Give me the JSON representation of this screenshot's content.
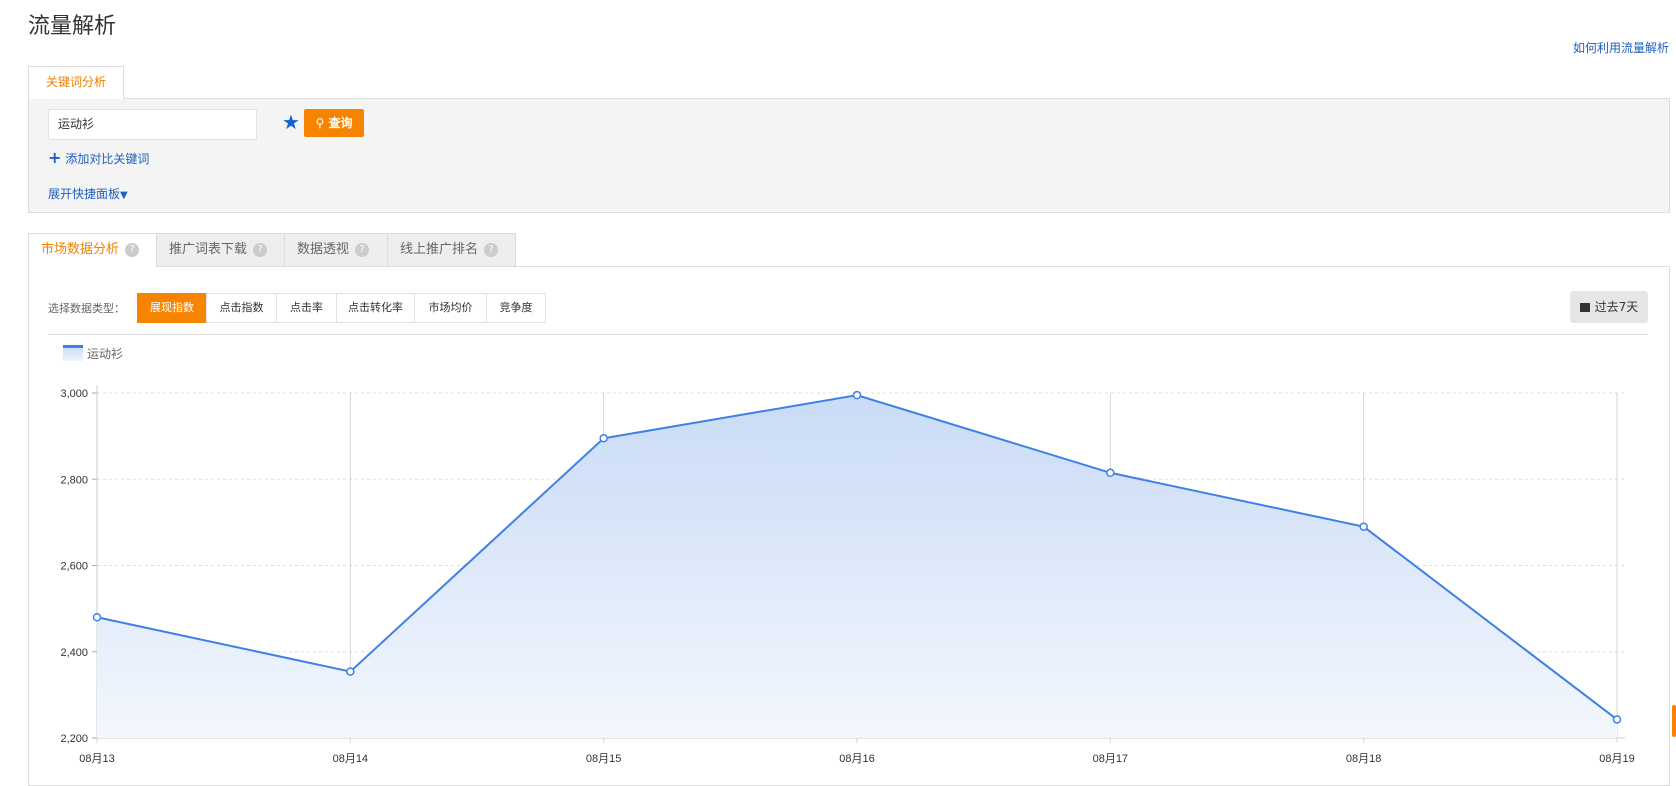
{
  "page": {
    "title": "流量解析",
    "help_link": "如何利用流量解析"
  },
  "keyword_panel": {
    "tab_label": "关键词分析",
    "input_value": "运动衫",
    "favorite_icon": "star-icon",
    "query_label": "查询",
    "add_compare_label": "添加对比关键词",
    "expand_label": "展开快捷面板"
  },
  "tabs": [
    {
      "label": "市场数据分析",
      "active": true
    },
    {
      "label": "推广词表下载",
      "active": false
    },
    {
      "label": "数据透视",
      "active": false
    },
    {
      "label": "线上推广排名",
      "active": false
    }
  ],
  "data_type": {
    "label": "选择数据类型：",
    "options": [
      "展现指数",
      "点击指数",
      "点击率",
      "点击转化率",
      "市场均价",
      "竞争度"
    ],
    "selected": "展现指数"
  },
  "date_range": {
    "label": "过去7天"
  },
  "colors": {
    "accent": "#f78400",
    "link": "#1f5fbf",
    "series": "#3f80e6"
  },
  "chart_data": {
    "type": "area",
    "categories": [
      "08月13",
      "08月14",
      "08月15",
      "08月16",
      "08月17",
      "08月18",
      "08月19"
    ],
    "series": [
      {
        "name": "运动衫",
        "values": [
          2480,
          2354,
          2895,
          2995,
          2815,
          2690,
          2243
        ]
      }
    ],
    "yticks": [
      "2,200",
      "2,400",
      "2,600",
      "2,800",
      "3,000"
    ],
    "ylim": [
      2200,
      3000
    ],
    "grid": true,
    "legend": "top-left"
  }
}
